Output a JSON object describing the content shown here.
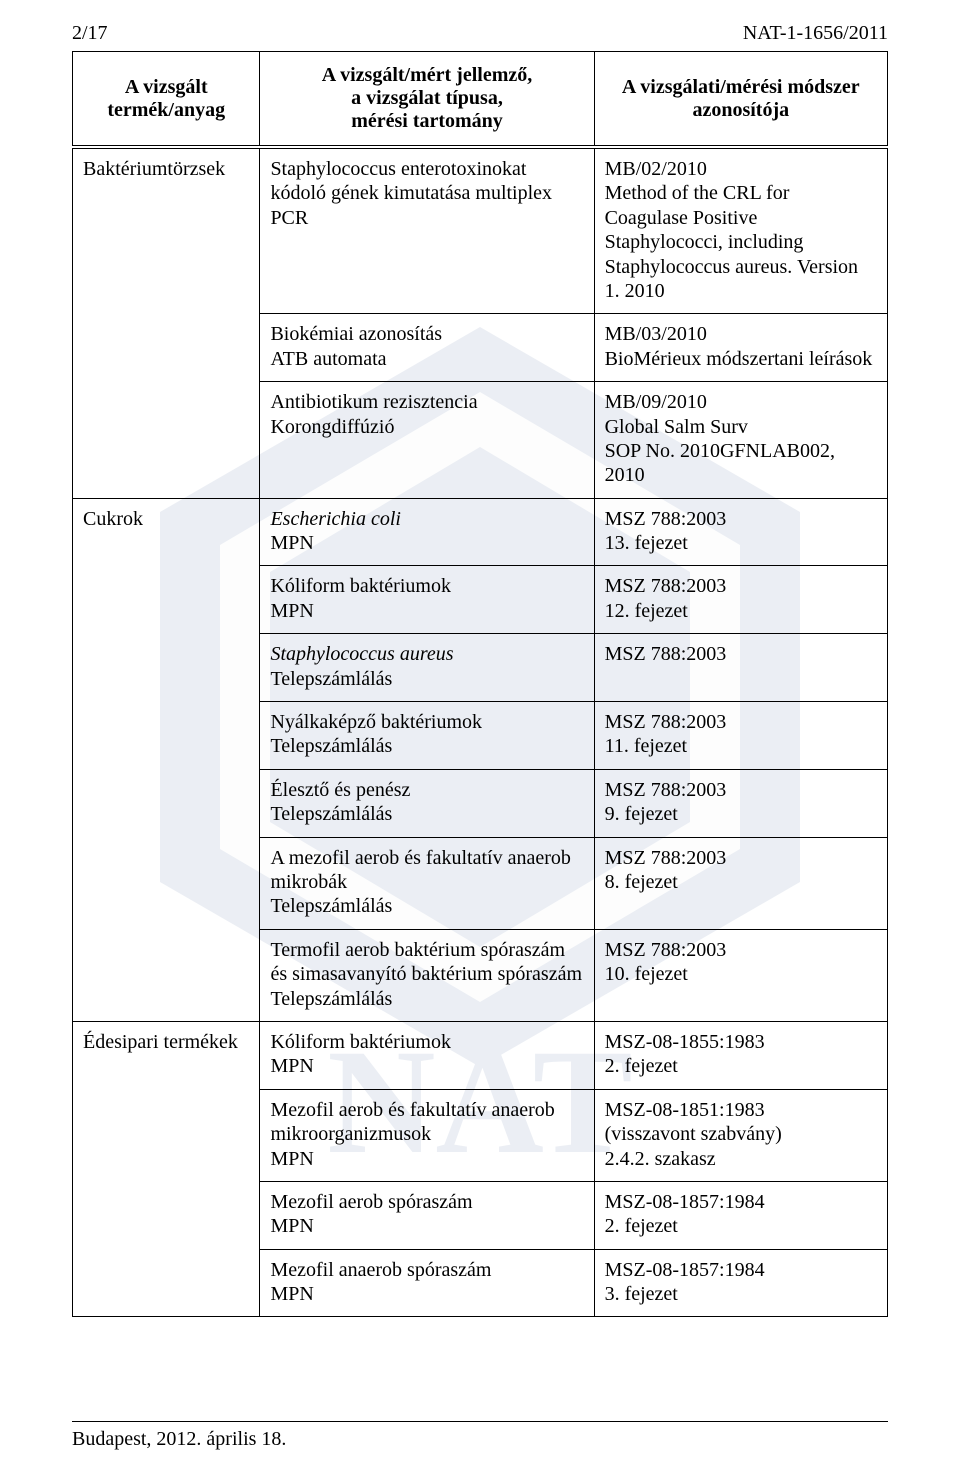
{
  "pageHeader": {
    "left": "2/17",
    "right": "NAT-1-1656/2011"
  },
  "columns": {
    "product": "A vizsgált termék/anyag",
    "method": "A vizsgált/mért jellemző,\na vizsgálat típusa,\nmérési tartomány",
    "stdid": "A vizsgálati/mérési módszer\nazonosítója"
  },
  "rows": [
    {
      "product": "Baktériumtörzsek",
      "method": "Staphylococcus enterotoxinokat kódoló gének kimutatása multiplex PCR",
      "stdid": "MB/02/2010\nMethod of the CRL for Coagulase Positive Staphylococci, including Staphylococcus aureus. Version 1. 2010"
    },
    {
      "product": "",
      "method": "Biokémiai azonosítás\nATB automata",
      "stdid": "MB/03/2010\nBioMérieux módszertani leírások"
    },
    {
      "product": "",
      "method": "Antibiotikum rezisztencia\nKorongdiffúzió",
      "stdid": "MB/09/2010\nGlobal Salm Surv\nSOP No. 2010GFNLAB002, 2010"
    },
    {
      "product": "Cukrok",
      "method_italic": "Escherichia coli",
      "method_rest": "MPN",
      "stdid": "MSZ 788:2003\n13. fejezet"
    },
    {
      "product": "",
      "method": "Kóliform baktériumok\nMPN",
      "stdid": "MSZ 788:2003\n12. fejezet"
    },
    {
      "product": "",
      "method_italic": "Staphylococcus aureus",
      "method_rest": "Telepszámlálás",
      "stdid": "MSZ 788:2003"
    },
    {
      "product": "",
      "method": "Nyálkaképző baktériumok\nTelepszámlálás",
      "stdid": "MSZ 788:2003\n11. fejezet"
    },
    {
      "product": "",
      "method": "Élesztő és penész\nTelepszámlálás",
      "stdid": "MSZ 788:2003\n9. fejezet"
    },
    {
      "product": "",
      "method": "A mezofil aerob és fakultatív anaerob mikrobák\nTelepszámlálás",
      "stdid": "MSZ 788:2003\n8. fejezet"
    },
    {
      "product": "",
      "method": "Termofil aerob baktérium spóraszám és simasavanyító baktérium spóraszám\nTelepszámlálás",
      "stdid": "MSZ 788:2003\n10. fejezet"
    },
    {
      "product": "Édesipari termékek",
      "method": "Kóliform baktériumok\nMPN",
      "stdid": "MSZ-08-1855:1983\n2. fejezet"
    },
    {
      "product": "",
      "method": "Mezofil aerob és fakultatív anaerob mikroorganizmusok\nMPN",
      "stdid": "MSZ-08-1851:1983\n(visszavont szabvány)\n2.4.2. szakasz"
    },
    {
      "product": "",
      "method": "Mezofil aerob spóraszám\nMPN",
      "stdid": "MSZ-08-1857:1984\n2. fejezet"
    },
    {
      "product": "",
      "method": "Mezofil anaerob spóraszám\nMPN",
      "stdid": "MSZ-08-1857:1984\n3. fejezet"
    }
  ],
  "productSpans": {
    "0": 3,
    "3": 7,
    "10": 4
  },
  "footer": "Budapest, 2012. április 18.",
  "colors": {
    "watermark": "#b9c5d8"
  }
}
